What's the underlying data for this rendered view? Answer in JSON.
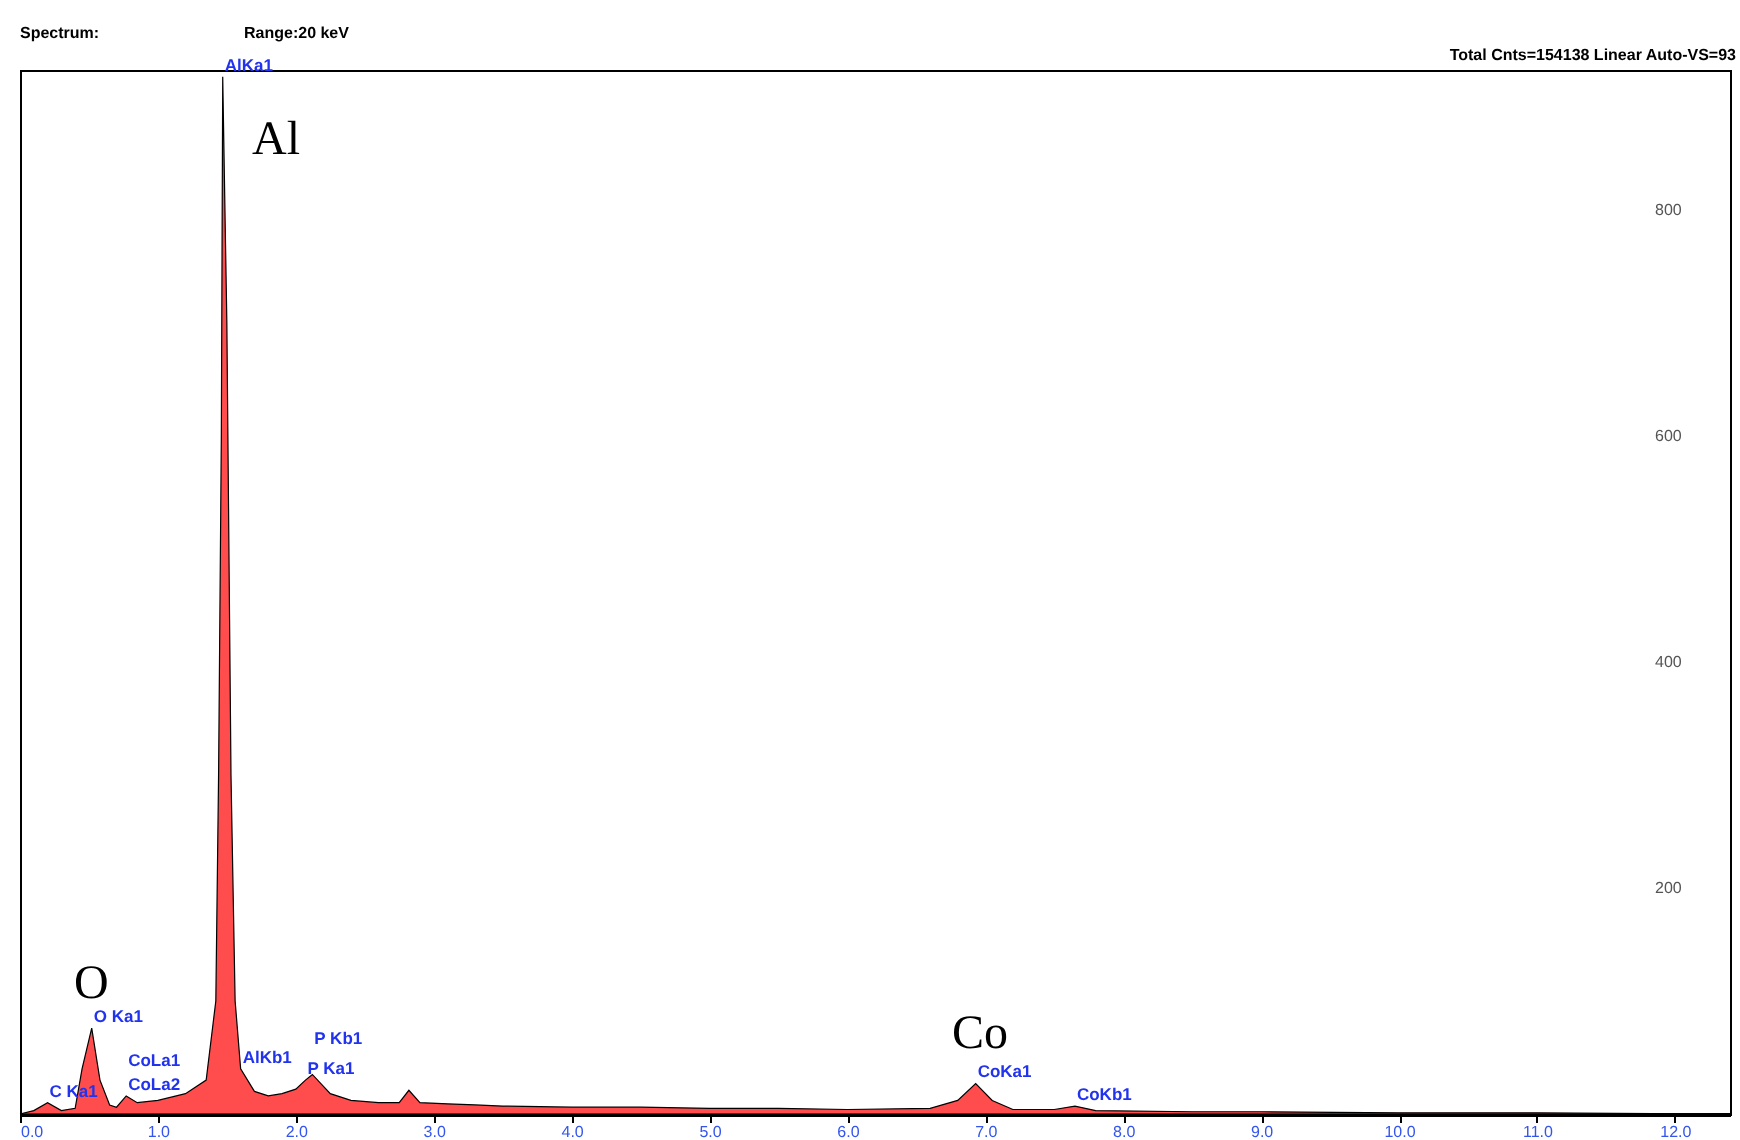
{
  "chart_data": {
    "type": "area",
    "color": "#ff0000",
    "x": [
      0.0,
      0.1,
      0.2,
      0.3,
      0.4,
      0.45,
      0.52,
      0.58,
      0.65,
      0.7,
      0.77,
      0.85,
      1.0,
      1.2,
      1.35,
      1.42,
      1.44,
      1.46,
      1.47,
      1.5,
      1.53,
      1.56,
      1.6,
      1.7,
      1.8,
      1.9,
      2.0,
      2.07,
      2.12,
      2.25,
      2.4,
      2.6,
      2.75,
      2.82,
      2.9,
      3.1,
      3.3,
      3.5,
      4.0,
      4.5,
      5.0,
      5.5,
      6.0,
      6.6,
      6.8,
      6.93,
      7.05,
      7.2,
      7.5,
      7.65,
      7.8,
      8.5,
      9.0,
      10.0,
      11.0,
      12.4
    ],
    "values": [
      0,
      3,
      10,
      3,
      5,
      40,
      76,
      30,
      8,
      6,
      16,
      10,
      12,
      18,
      30,
      100,
      300,
      600,
      918,
      700,
      300,
      100,
      40,
      20,
      16,
      18,
      22,
      30,
      35,
      18,
      12,
      10,
      10,
      21,
      10,
      9,
      8,
      7,
      6,
      6,
      5,
      5,
      4,
      5,
      12,
      27,
      12,
      4,
      4,
      7,
      3,
      2,
      2,
      1,
      1,
      0
    ],
    "xlim": [
      0,
      12.4
    ],
    "xticks": [
      {
        "value": 0,
        "label": "0.0"
      },
      {
        "value": 1,
        "label": "1.0"
      },
      {
        "value": 2,
        "label": "2.0"
      },
      {
        "value": 3,
        "label": "3.0"
      },
      {
        "value": 4,
        "label": "4.0"
      },
      {
        "value": 5,
        "label": "5.0"
      },
      {
        "value": 6,
        "label": "6.0"
      },
      {
        "value": 7,
        "label": "7.0"
      },
      {
        "value": 8,
        "label": "8.0"
      },
      {
        "value": 9,
        "label": "9.0"
      },
      {
        "value": 10,
        "label": "10.0"
      },
      {
        "value": 11,
        "label": "11.0"
      },
      {
        "value": 12,
        "label": "12.0"
      }
    ],
    "ylim": [
      0,
      924
    ],
    "yticks": [
      200,
      400,
      600,
      800
    ],
    "grid": false,
    "annotations": [
      "Spectrum:",
      "Range:20  keV",
      "Total Cnts=154138 Linear  Auto-VS=93",
      "Al",
      "O",
      "Co",
      {
        "text": "AlKa1",
        "x": 1.47,
        "y": 918
      },
      {
        "text": "O Ka1",
        "x": 0.52,
        "y": 76
      },
      {
        "text": "C Ka1",
        "x": 0.2,
        "y": 10
      },
      {
        "text": "CoLa2",
        "x": 0.77,
        "y": 16
      },
      {
        "text": "CoLa1",
        "x": 0.77,
        "y": 16
      },
      {
        "text": "AlKb1",
        "x": 1.6,
        "y": 40
      },
      {
        "text": "P Ka1",
        "x": 2.07,
        "y": 30
      },
      {
        "text": "P Kb1",
        "x": 2.12,
        "y": 35
      },
      {
        "text": "CoKa1",
        "x": 6.93,
        "y": 27
      },
      {
        "text": "CoKb1",
        "x": 7.65,
        "y": 7
      }
    ]
  }
}
